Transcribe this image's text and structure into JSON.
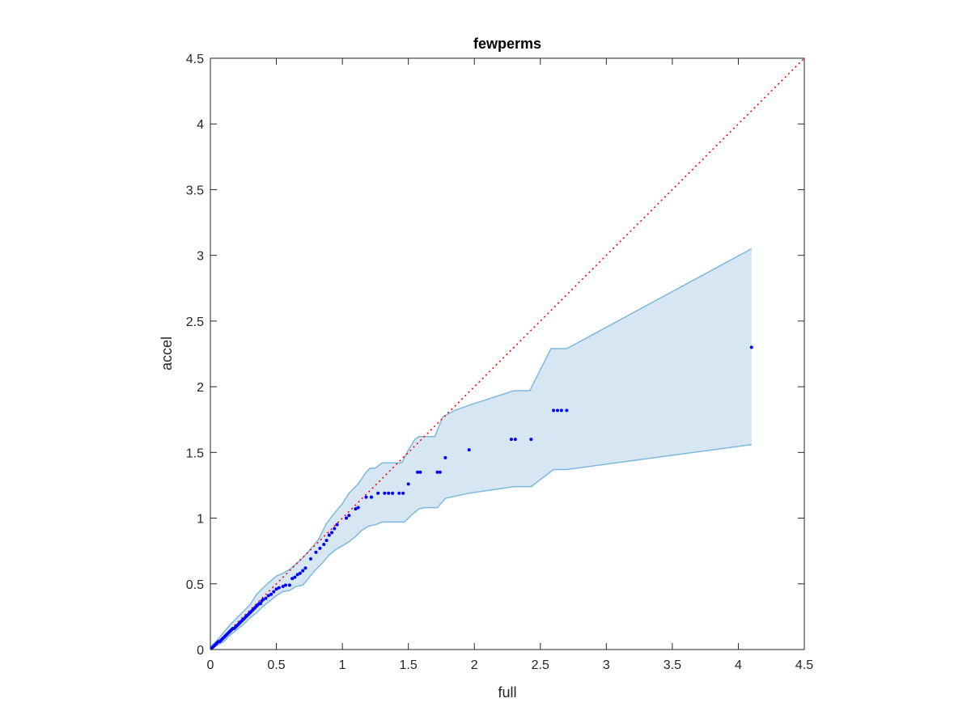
{
  "chart_data": {
    "type": "scatter",
    "title": "fewperms",
    "xlabel": "full",
    "ylabel": "accel",
    "xlim": [
      0,
      4.5
    ],
    "ylim": [
      0,
      4.5
    ],
    "xticks": [
      0,
      0.5,
      1,
      1.5,
      2,
      2.5,
      3,
      3.5,
      4,
      4.5
    ],
    "yticks": [
      0,
      0.5,
      1,
      1.5,
      2,
      2.5,
      3,
      3.5,
      4,
      4.5
    ],
    "xtick_labels": [
      "0",
      "0.5",
      "1",
      "1.5",
      "2",
      "2.5",
      "3",
      "3.5",
      "4",
      "4.5"
    ],
    "ytick_labels": [
      "0",
      "0.5",
      "1",
      "1.5",
      "2",
      "2.5",
      "3",
      "3.5",
      "4",
      "4.5"
    ],
    "grid": false,
    "colors": {
      "points": "#0000ff",
      "diagonal": "#ff0000",
      "band_fill": "#d6e6f3",
      "band_edge": "#7fb8dd",
      "axes": "#262626"
    },
    "diagonal": {
      "x": [
        0,
        4.5
      ],
      "y": [
        0,
        4.5
      ],
      "style": "dotted"
    },
    "band": {
      "upper": [
        [
          0,
          0.02
        ],
        [
          0.05,
          0.07
        ],
        [
          0.1,
          0.13
        ],
        [
          0.15,
          0.19
        ],
        [
          0.2,
          0.24
        ],
        [
          0.25,
          0.29
        ],
        [
          0.3,
          0.34
        ],
        [
          0.35,
          0.42
        ],
        [
          0.42,
          0.49
        ],
        [
          0.5,
          0.56
        ],
        [
          0.55,
          0.58
        ],
        [
          0.6,
          0.61
        ],
        [
          0.67,
          0.67
        ],
        [
          0.72,
          0.72
        ],
        [
          0.78,
          0.79
        ],
        [
          0.82,
          0.84
        ],
        [
          0.88,
          0.96
        ],
        [
          0.95,
          1.05
        ],
        [
          1.0,
          1.11
        ],
        [
          1.05,
          1.19
        ],
        [
          1.12,
          1.26
        ],
        [
          1.18,
          1.35
        ],
        [
          1.21,
          1.38
        ],
        [
          1.25,
          1.38
        ],
        [
          1.3,
          1.42
        ],
        [
          1.45,
          1.42
        ],
        [
          1.5,
          1.52
        ],
        [
          1.55,
          1.6
        ],
        [
          1.58,
          1.62
        ],
        [
          1.7,
          1.62
        ],
        [
          1.76,
          1.77
        ],
        [
          1.85,
          1.82
        ],
        [
          1.96,
          1.86
        ],
        [
          2.3,
          1.97
        ],
        [
          2.42,
          1.97
        ],
        [
          2.58,
          2.29
        ],
        [
          2.7,
          2.29
        ],
        [
          4.1,
          3.05
        ]
      ],
      "lower": [
        [
          0,
          0.0
        ],
        [
          0.05,
          0.03
        ],
        [
          0.1,
          0.06
        ],
        [
          0.15,
          0.11
        ],
        [
          0.2,
          0.15
        ],
        [
          0.25,
          0.19
        ],
        [
          0.3,
          0.24
        ],
        [
          0.35,
          0.28
        ],
        [
          0.4,
          0.33
        ],
        [
          0.45,
          0.37
        ],
        [
          0.5,
          0.41
        ],
        [
          0.55,
          0.44
        ],
        [
          0.6,
          0.45
        ],
        [
          0.65,
          0.48
        ],
        [
          0.7,
          0.49
        ],
        [
          0.75,
          0.55
        ],
        [
          0.8,
          0.61
        ],
        [
          0.85,
          0.66
        ],
        [
          0.9,
          0.72
        ],
        [
          0.95,
          0.76
        ],
        [
          1.0,
          0.79
        ],
        [
          1.05,
          0.82
        ],
        [
          1.1,
          0.86
        ],
        [
          1.15,
          0.91
        ],
        [
          1.2,
          0.94
        ],
        [
          1.25,
          0.95
        ],
        [
          1.3,
          0.97
        ],
        [
          1.4,
          0.97
        ],
        [
          1.47,
          0.97
        ],
        [
          1.52,
          1.02
        ],
        [
          1.58,
          1.07
        ],
        [
          1.62,
          1.08
        ],
        [
          1.72,
          1.08
        ],
        [
          1.78,
          1.15
        ],
        [
          1.96,
          1.19
        ],
        [
          2.3,
          1.24
        ],
        [
          2.43,
          1.24
        ],
        [
          2.6,
          1.37
        ],
        [
          2.7,
          1.37
        ],
        [
          4.1,
          1.56
        ]
      ]
    },
    "points": {
      "x": [
        0.01,
        0.02,
        0.03,
        0.04,
        0.05,
        0.06,
        0.07,
        0.08,
        0.09,
        0.1,
        0.11,
        0.12,
        0.13,
        0.14,
        0.15,
        0.16,
        0.17,
        0.18,
        0.19,
        0.2,
        0.21,
        0.22,
        0.23,
        0.24,
        0.25,
        0.26,
        0.27,
        0.28,
        0.29,
        0.3,
        0.31,
        0.32,
        0.33,
        0.34,
        0.35,
        0.36,
        0.37,
        0.38,
        0.39,
        0.4,
        0.42,
        0.44,
        0.46,
        0.48,
        0.5,
        0.52,
        0.55,
        0.57,
        0.6,
        0.62,
        0.64,
        0.66,
        0.68,
        0.7,
        0.72,
        0.76,
        0.8,
        0.83,
        0.86,
        0.88,
        0.9,
        0.92,
        0.94,
        0.96,
        1.03,
        1.05,
        1.1,
        1.12,
        1.18,
        1.22,
        1.27,
        1.32,
        1.35,
        1.38,
        1.43,
        1.46,
        1.5,
        1.57,
        1.59,
        1.72,
        1.74,
        1.78,
        1.96,
        2.28,
        2.31,
        2.43,
        2.6,
        2.63,
        2.66,
        2.7,
        4.1
      ],
      "y": [
        0.01,
        0.02,
        0.03,
        0.04,
        0.05,
        0.06,
        0.06,
        0.07,
        0.08,
        0.09,
        0.1,
        0.11,
        0.12,
        0.13,
        0.14,
        0.15,
        0.16,
        0.16,
        0.17,
        0.18,
        0.19,
        0.2,
        0.21,
        0.22,
        0.23,
        0.24,
        0.25,
        0.26,
        0.27,
        0.28,
        0.29,
        0.3,
        0.31,
        0.32,
        0.33,
        0.34,
        0.35,
        0.35,
        0.37,
        0.38,
        0.39,
        0.41,
        0.42,
        0.44,
        0.46,
        0.47,
        0.48,
        0.49,
        0.49,
        0.54,
        0.55,
        0.57,
        0.58,
        0.6,
        0.62,
        0.69,
        0.74,
        0.77,
        0.8,
        0.83,
        0.87,
        0.89,
        0.92,
        0.95,
        1.0,
        1.02,
        1.07,
        1.08,
        1.16,
        1.16,
        1.19,
        1.19,
        1.19,
        1.19,
        1.19,
        1.19,
        1.26,
        1.35,
        1.35,
        1.35,
        1.35,
        1.46,
        1.52,
        1.6,
        1.6,
        1.6,
        1.82,
        1.82,
        1.82,
        1.82,
        2.3
      ]
    }
  }
}
